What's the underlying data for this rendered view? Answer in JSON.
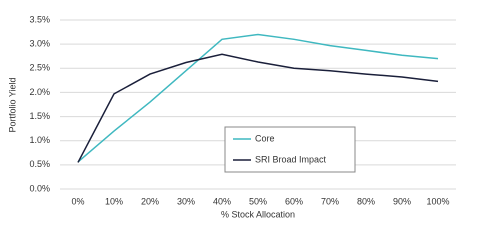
{
  "chart_data": {
    "type": "line",
    "categories": [
      "0%",
      "10%",
      "20%",
      "30%",
      "40%",
      "50%",
      "60%",
      "70%",
      "80%",
      "90%",
      "100%"
    ],
    "series": [
      {
        "name": "Core",
        "color": "#3fb8c0",
        "values": [
          0.56,
          1.2,
          1.8,
          2.45,
          3.1,
          3.2,
          3.1,
          2.97,
          2.87,
          2.77,
          2.7
        ]
      },
      {
        "name": "SRI Broad Impact",
        "color": "#1a1f3a",
        "values": [
          0.55,
          1.97,
          2.38,
          2.62,
          2.79,
          2.63,
          2.5,
          2.45,
          2.38,
          2.32,
          2.23
        ]
      }
    ],
    "ylim": [
      0,
      3.5
    ],
    "yticks": [
      {
        "value": 0,
        "label": "0.0%"
      },
      {
        "value": 0.5,
        "label": "0.5%"
      },
      {
        "value": 1,
        "label": "1.0%"
      },
      {
        "value": 1.5,
        "label": "1.5%"
      },
      {
        "value": 2,
        "label": "2.0%"
      },
      {
        "value": 2.5,
        "label": "2.5%"
      },
      {
        "value": 3,
        "label": "3.0%"
      },
      {
        "value": 3.5,
        "label": "3.5%"
      }
    ],
    "x_label": "% Stock Allocation",
    "y_label": "Portfolio Yield",
    "grid": true
  }
}
